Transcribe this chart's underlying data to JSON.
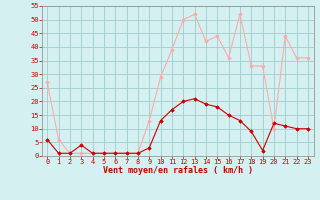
{
  "hours": [
    0,
    1,
    2,
    3,
    4,
    5,
    6,
    7,
    8,
    9,
    10,
    11,
    12,
    13,
    14,
    15,
    16,
    17,
    18,
    19,
    20,
    21,
    22,
    23
  ],
  "avg_wind": [
    6,
    1,
    1,
    4,
    1,
    1,
    1,
    1,
    1,
    3,
    13,
    17,
    20,
    21,
    19,
    18,
    15,
    13,
    9,
    2,
    12,
    11,
    10,
    10
  ],
  "gust_wind": [
    27,
    6,
    1,
    1,
    1,
    1,
    1,
    1,
    1,
    13,
    29,
    39,
    50,
    52,
    42,
    44,
    36,
    52,
    33,
    33,
    10,
    44,
    36,
    36
  ],
  "avg_color": "#cc0000",
  "gust_color": "#ffaaaa",
  "bg_color": "#d4f0f0",
  "grid_color": "#a0cccc",
  "xlabel": "Vent moyen/en rafales ( km/h )",
  "ylim": [
    0,
    55
  ],
  "yticks": [
    0,
    5,
    10,
    15,
    20,
    25,
    30,
    35,
    40,
    45,
    50,
    55
  ],
  "xticks": [
    0,
    1,
    2,
    3,
    4,
    5,
    6,
    7,
    8,
    9,
    10,
    11,
    12,
    13,
    14,
    15,
    16,
    17,
    18,
    19,
    20,
    21,
    22,
    23
  ]
}
